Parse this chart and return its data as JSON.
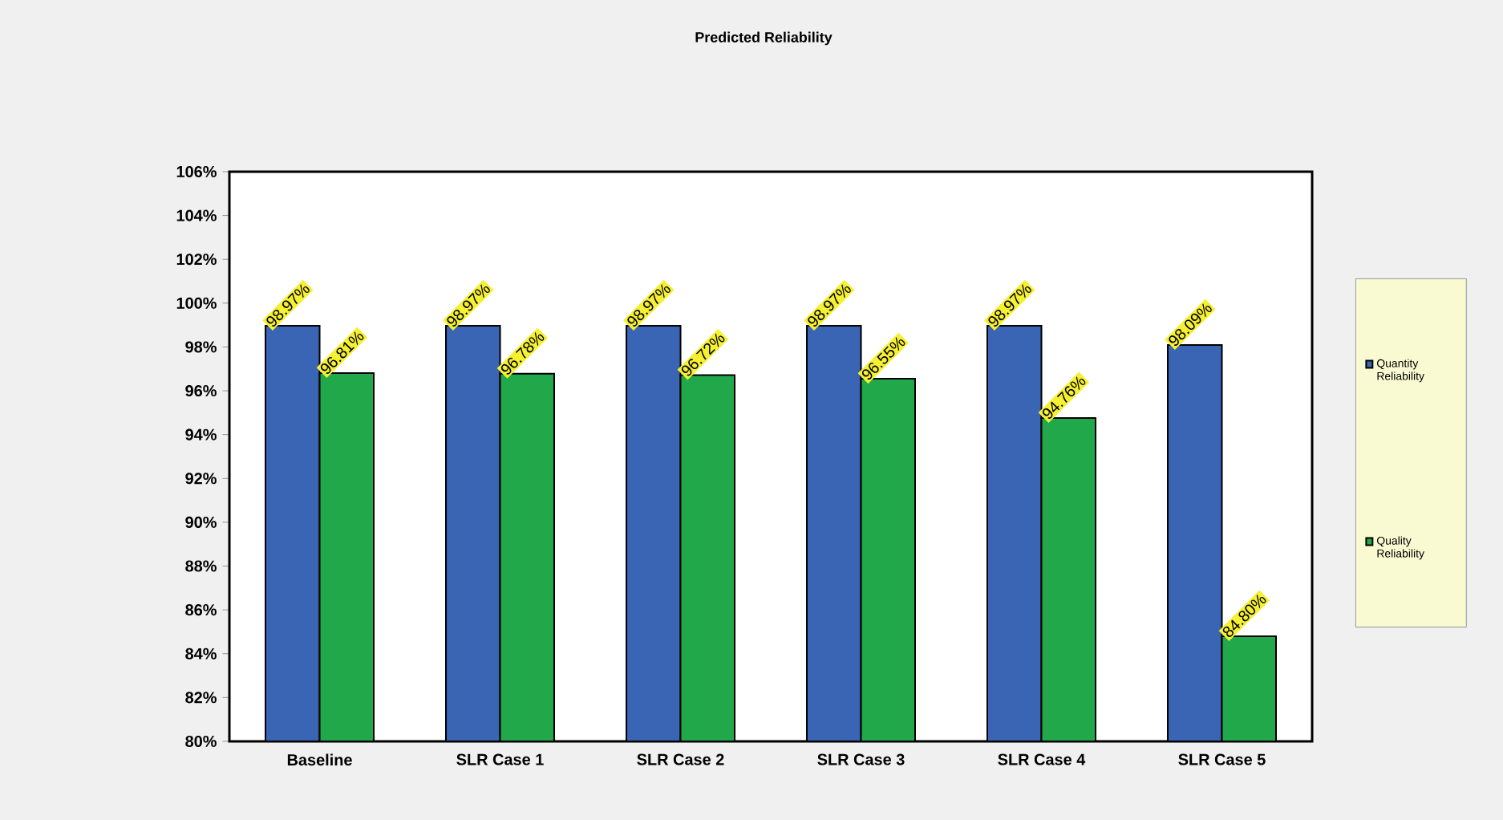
{
  "chart_data": {
    "type": "bar",
    "title": "Predicted Reliability",
    "categories": [
      "Baseline",
      "SLR Case 1",
      "SLR Case 2",
      "SLR Case 3",
      "SLR Case 4",
      "SLR Case 5"
    ],
    "series": [
      {
        "name": "Quantity Reliability",
        "color": "#3a64b4",
        "values": [
          98.97,
          98.97,
          98.97,
          98.97,
          98.97,
          98.09
        ],
        "value_labels": [
          "98.97%",
          "98.97%",
          "98.97%",
          "98.97%",
          "98.97%",
          "98.09%"
        ]
      },
      {
        "name": "Quality Reliability",
        "color": "#21a84a",
        "values": [
          96.81,
          96.78,
          96.72,
          96.55,
          94.76,
          84.8
        ],
        "value_labels": [
          "96.81%",
          "96.78%",
          "96.72%",
          "96.55%",
          "94.76%",
          "84.80%"
        ]
      }
    ],
    "ylim": [
      80,
      106
    ],
    "yticks": [
      {
        "value": 80,
        "label": "80%"
      },
      {
        "value": 82,
        "label": "82%"
      },
      {
        "value": 84,
        "label": "84%"
      },
      {
        "value": 86,
        "label": "86%"
      },
      {
        "value": 88,
        "label": "88%"
      },
      {
        "value": 90,
        "label": "90%"
      },
      {
        "value": 92,
        "label": "92%"
      },
      {
        "value": 94,
        "label": "94%"
      },
      {
        "value": 96,
        "label": "96%"
      },
      {
        "value": 98,
        "label": "98%"
      },
      {
        "value": 100,
        "label": "100%"
      },
      {
        "value": 102,
        "label": "102%"
      },
      {
        "value": 104,
        "label": "104%"
      },
      {
        "value": 106,
        "label": "106%"
      }
    ],
    "grid": false,
    "legend": "right"
  }
}
